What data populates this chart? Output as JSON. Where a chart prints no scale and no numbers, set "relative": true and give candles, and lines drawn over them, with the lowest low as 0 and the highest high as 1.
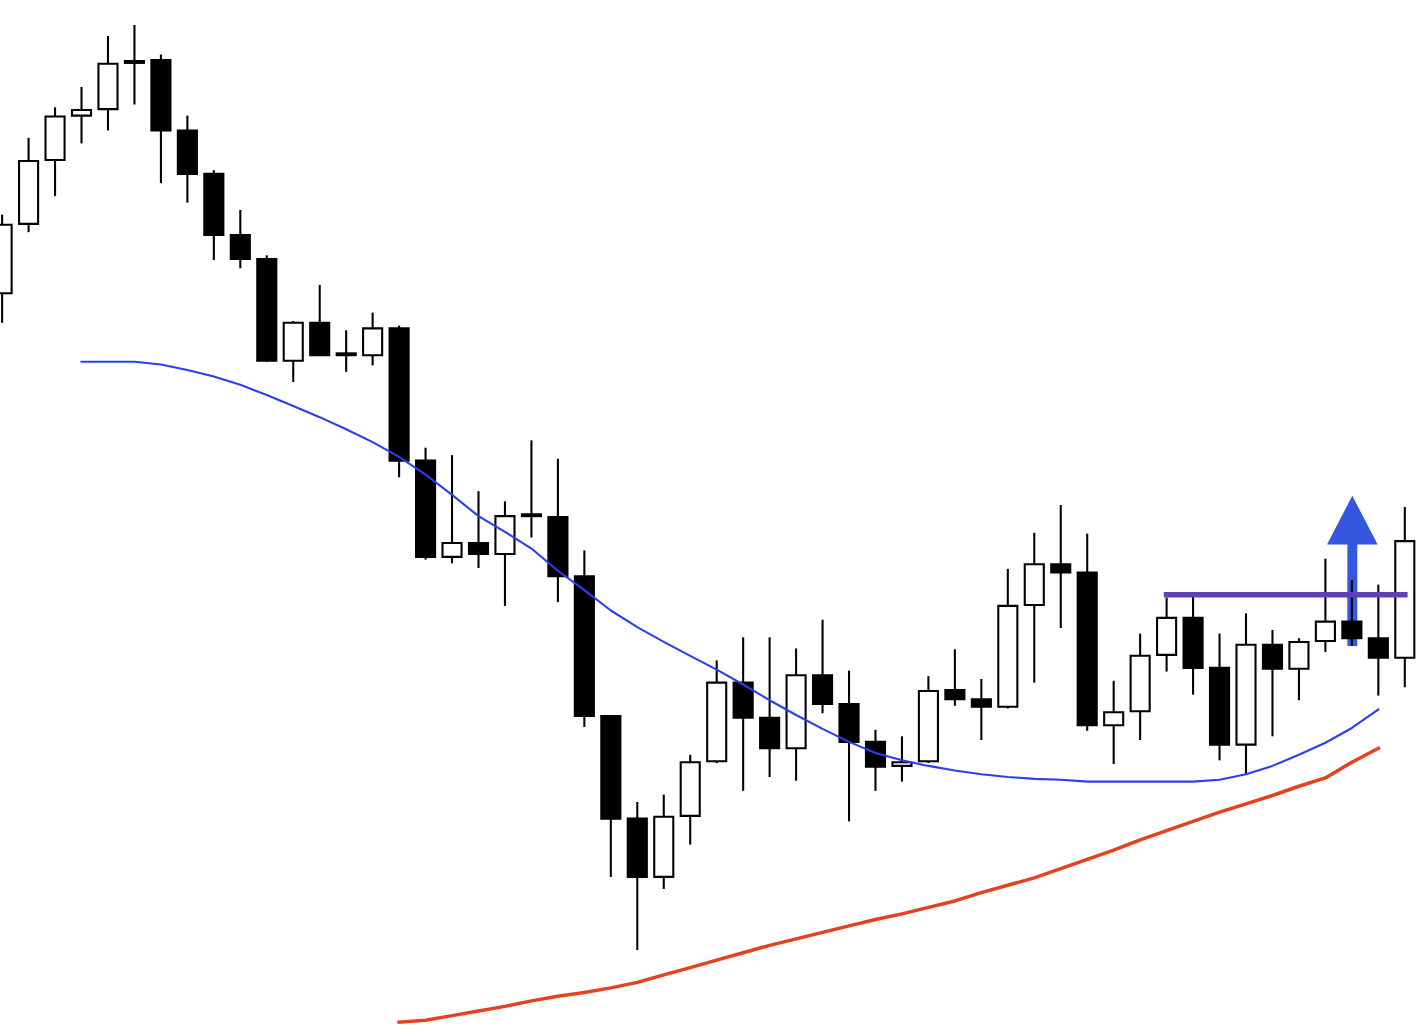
{
  "chart_data": {
    "type": "candlestick",
    "relative": true,
    "categories": [
      null,
      null,
      null,
      null,
      null,
      null,
      null,
      null,
      null,
      null,
      null,
      null,
      null,
      null,
      null,
      null,
      null,
      null,
      null,
      null,
      null,
      null,
      null,
      null,
      null,
      null,
      null,
      null,
      null,
      null,
      null,
      null,
      null,
      null,
      null,
      null,
      null,
      null,
      null,
      null,
      null,
      null,
      null,
      null,
      null,
      null,
      null,
      null,
      null,
      null,
      null,
      null,
      null,
      null
    ],
    "ohlc": [
      [
        0.71,
        0.795,
        0.678,
        0.784
      ],
      [
        0.785,
        0.878,
        0.776,
        0.853
      ],
      [
        0.854,
        0.911,
        0.815,
        0.901
      ],
      [
        0.902,
        0.933,
        0.872,
        0.908
      ],
      [
        0.909,
        0.988,
        0.886,
        0.958
      ],
      [
        0.959,
        1.0,
        0.914,
        0.961
      ],
      [
        0.962,
        0.968,
        0.829,
        0.886
      ],
      [
        0.886,
        0.902,
        0.808,
        0.839
      ],
      [
        0.839,
        0.843,
        0.746,
        0.773
      ],
      [
        0.773,
        0.8,
        0.737,
        0.747
      ],
      [
        0.747,
        0.751,
        0.636,
        0.637
      ],
      [
        0.637,
        0.68,
        0.614,
        0.678
      ],
      [
        0.678,
        0.719,
        0.643,
        0.643
      ],
      [
        0.643,
        0.67,
        0.625,
        0.644
      ],
      [
        0.643,
        0.689,
        0.632,
        0.672
      ],
      [
        0.672,
        0.675,
        0.511,
        0.529
      ],
      [
        0.529,
        0.543,
        0.422,
        0.425
      ],
      [
        0.425,
        0.535,
        0.418,
        0.44
      ],
      [
        0.44,
        0.496,
        0.413,
        0.428
      ],
      [
        0.428,
        0.485,
        0.372,
        0.469
      ],
      [
        0.469,
        0.551,
        0.446,
        0.471
      ],
      [
        0.468,
        0.531,
        0.376,
        0.404
      ],
      [
        0.404,
        0.432,
        0.241,
        0.253
      ],
      [
        0.253,
        0.253,
        0.079,
        0.142
      ],
      [
        0.142,
        0.16,
        0.0,
        0.079
      ],
      [
        0.079,
        0.168,
        0.066,
        0.144
      ],
      [
        0.145,
        0.211,
        0.114,
        0.203
      ],
      [
        0.204,
        0.313,
        0.202,
        0.289
      ],
      [
        0.289,
        0.338,
        0.172,
        0.251
      ],
      [
        0.251,
        0.338,
        0.187,
        0.218
      ],
      [
        0.218,
        0.326,
        0.183,
        0.297
      ],
      [
        0.297,
        0.357,
        0.256,
        0.266
      ],
      [
        0.266,
        0.302,
        0.139,
        0.225
      ],
      [
        0.225,
        0.238,
        0.172,
        0.198
      ],
      [
        0.199,
        0.231,
        0.182,
        0.203
      ],
      [
        0.204,
        0.296,
        0.202,
        0.28
      ],
      [
        0.281,
        0.325,
        0.264,
        0.271
      ],
      [
        0.271,
        0.293,
        0.227,
        0.263
      ],
      [
        0.263,
        0.412,
        0.261,
        0.372
      ],
      [
        0.373,
        0.451,
        0.289,
        0.417
      ],
      [
        0.417,
        0.481,
        0.348,
        0.408
      ],
      [
        0.408,
        0.45,
        0.237,
        0.243
      ],
      [
        0.243,
        0.291,
        0.201,
        0.257
      ],
      [
        0.258,
        0.342,
        0.227,
        0.318
      ],
      [
        0.319,
        0.381,
        0.301,
        0.359
      ],
      [
        0.359,
        0.382,
        0.276,
        0.305
      ],
      [
        0.305,
        0.342,
        0.205,
        0.222
      ],
      [
        0.222,
        0.364,
        0.19,
        0.33
      ],
      [
        0.33,
        0.346,
        0.231,
        0.304
      ],
      [
        0.304,
        0.337,
        0.27,
        0.333
      ],
      [
        0.334,
        0.423,
        0.322,
        0.355
      ],
      [
        0.355,
        0.4,
        0.329,
        0.337
      ],
      [
        0.337,
        0.395,
        0.275,
        0.316
      ],
      [
        0.316,
        0.479,
        0.284,
        0.442
      ]
    ],
    "series": [
      {
        "type": "line",
        "color": "#2a3ff0",
        "values": [
          null,
          null,
          null,
          0.636,
          0.636,
          0.636,
          0.633,
          0.627,
          0.62,
          0.611,
          0.6,
          0.588,
          0.576,
          0.563,
          0.549,
          0.533,
          0.514,
          0.492,
          0.469,
          0.452,
          0.434,
          0.41,
          0.389,
          0.367,
          0.349,
          0.333,
          0.318,
          0.303,
          0.287,
          0.27,
          0.254,
          0.239,
          0.225,
          0.213,
          0.205,
          0.199,
          0.194,
          0.19,
          0.187,
          0.185,
          0.184,
          0.182,
          0.182,
          0.182,
          0.182,
          0.182,
          0.184,
          0.19,
          0.199,
          0.211,
          0.224,
          0.24,
          0.26,
          null
        ]
      },
      {
        "type": "line",
        "color": "#e5401f",
        "values": [
          null,
          null,
          null,
          null,
          null,
          null,
          null,
          null,
          null,
          null,
          null,
          null,
          null,
          null,
          null,
          -0.078,
          -0.076,
          -0.071,
          -0.066,
          -0.061,
          -0.055,
          -0.05,
          -0.046,
          -0.041,
          -0.035,
          -0.027,
          -0.019,
          -0.011,
          -0.003,
          0.005,
          0.012,
          0.019,
          0.026,
          0.033,
          0.039,
          0.046,
          0.053,
          0.062,
          0.07,
          0.078,
          0.088,
          0.098,
          0.108,
          0.119,
          0.129,
          0.139,
          0.149,
          0.158,
          0.167,
          0.177,
          0.186,
          0.203,
          0.218,
          null
        ]
      },
      {
        "type": "line",
        "color": "#5e3fb8",
        "values": [
          null,
          null,
          null,
          null,
          null,
          null,
          null,
          null,
          null,
          null,
          null,
          null,
          null,
          null,
          null,
          null,
          null,
          null,
          null,
          null,
          null,
          null,
          null,
          null,
          null,
          null,
          null,
          null,
          null,
          null,
          null,
          null,
          null,
          null,
          null,
          null,
          null,
          null,
          null,
          null,
          null,
          null,
          null,
          null,
          0.384,
          0.384,
          0.384,
          0.384,
          0.384,
          0.384,
          0.384,
          0.384,
          0.384,
          0.384
        ]
      }
    ]
  }
}
